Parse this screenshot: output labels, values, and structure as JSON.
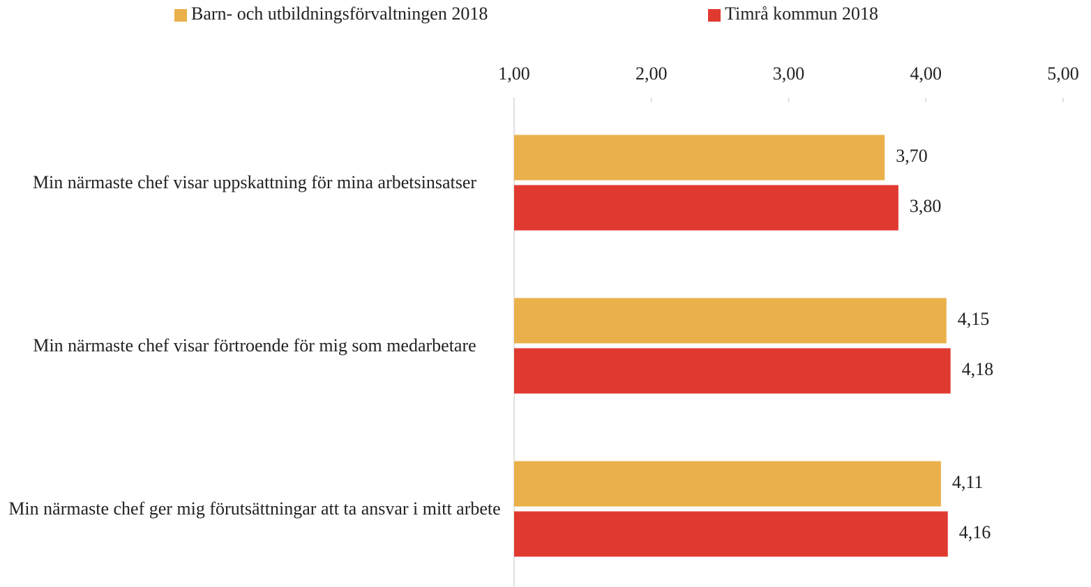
{
  "chart_data": {
    "type": "bar",
    "orientation": "horizontal",
    "categories": [
      "Min närmaste chef visar uppskattning för mina arbetsinsatser",
      "Min närmaste chef visar förtroende för mig som medarbetare",
      "Min närmaste chef ger mig förutsättningar att ta ansvar i mitt arbete"
    ],
    "series": [
      {
        "name": "Barn- och utbildningsförvaltningen 2018",
        "color": "#eab04a",
        "values": [
          3.7,
          4.15,
          4.11
        ],
        "value_labels": [
          "3,70",
          "4,15",
          "4,11"
        ]
      },
      {
        "name": "Timrå kommun 2018",
        "color": "#e03a30",
        "values": [
          3.8,
          4.18,
          4.16
        ],
        "value_labels": [
          "3,80",
          "4,18",
          "4,16"
        ]
      }
    ],
    "xlim": [
      1,
      5
    ],
    "xticks": [
      {
        "value": 1,
        "label": "1,00"
      },
      {
        "value": 2,
        "label": "2,00"
      },
      {
        "value": 3,
        "label": "3,00"
      },
      {
        "value": 4,
        "label": "4,00"
      },
      {
        "value": 5,
        "label": "5,00"
      }
    ],
    "grid": false,
    "legend": "top"
  }
}
